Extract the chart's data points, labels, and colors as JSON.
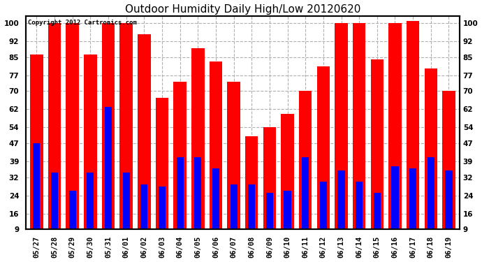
{
  "title": "Outdoor Humidity Daily High/Low 20120620",
  "copyright": "Copyright 2012 Cartronics.com",
  "dates": [
    "05/27",
    "05/28",
    "05/29",
    "05/30",
    "05/31",
    "06/01",
    "06/02",
    "06/03",
    "06/04",
    "06/05",
    "06/06",
    "06/07",
    "06/08",
    "06/09",
    "06/10",
    "06/11",
    "06/12",
    "06/13",
    "06/14",
    "06/15",
    "06/16",
    "06/17",
    "06/18",
    "06/19"
  ],
  "highs": [
    86,
    100,
    100,
    86,
    100,
    100,
    95,
    67,
    74,
    89,
    83,
    74,
    50,
    54,
    60,
    70,
    81,
    100,
    100,
    84,
    100,
    101,
    80,
    70
  ],
  "lows": [
    47,
    34,
    26,
    34,
    63,
    34,
    29,
    28,
    41,
    41,
    36,
    29,
    29,
    25,
    26,
    41,
    30,
    35,
    30,
    25,
    37,
    36,
    41,
    35
  ],
  "high_color": "#ff0000",
  "low_color": "#0000ff",
  "background_color": "#ffffff",
  "plot_bg_color": "#ffffff",
  "grid_color": "#b0b0b0",
  "title_fontsize": 11,
  "tick_fontsize": 7.5,
  "yticks": [
    9,
    16,
    24,
    32,
    39,
    47,
    54,
    62,
    70,
    77,
    85,
    92,
    100
  ],
  "ymin": 9,
  "ymax": 103,
  "bar_bottom": 9
}
